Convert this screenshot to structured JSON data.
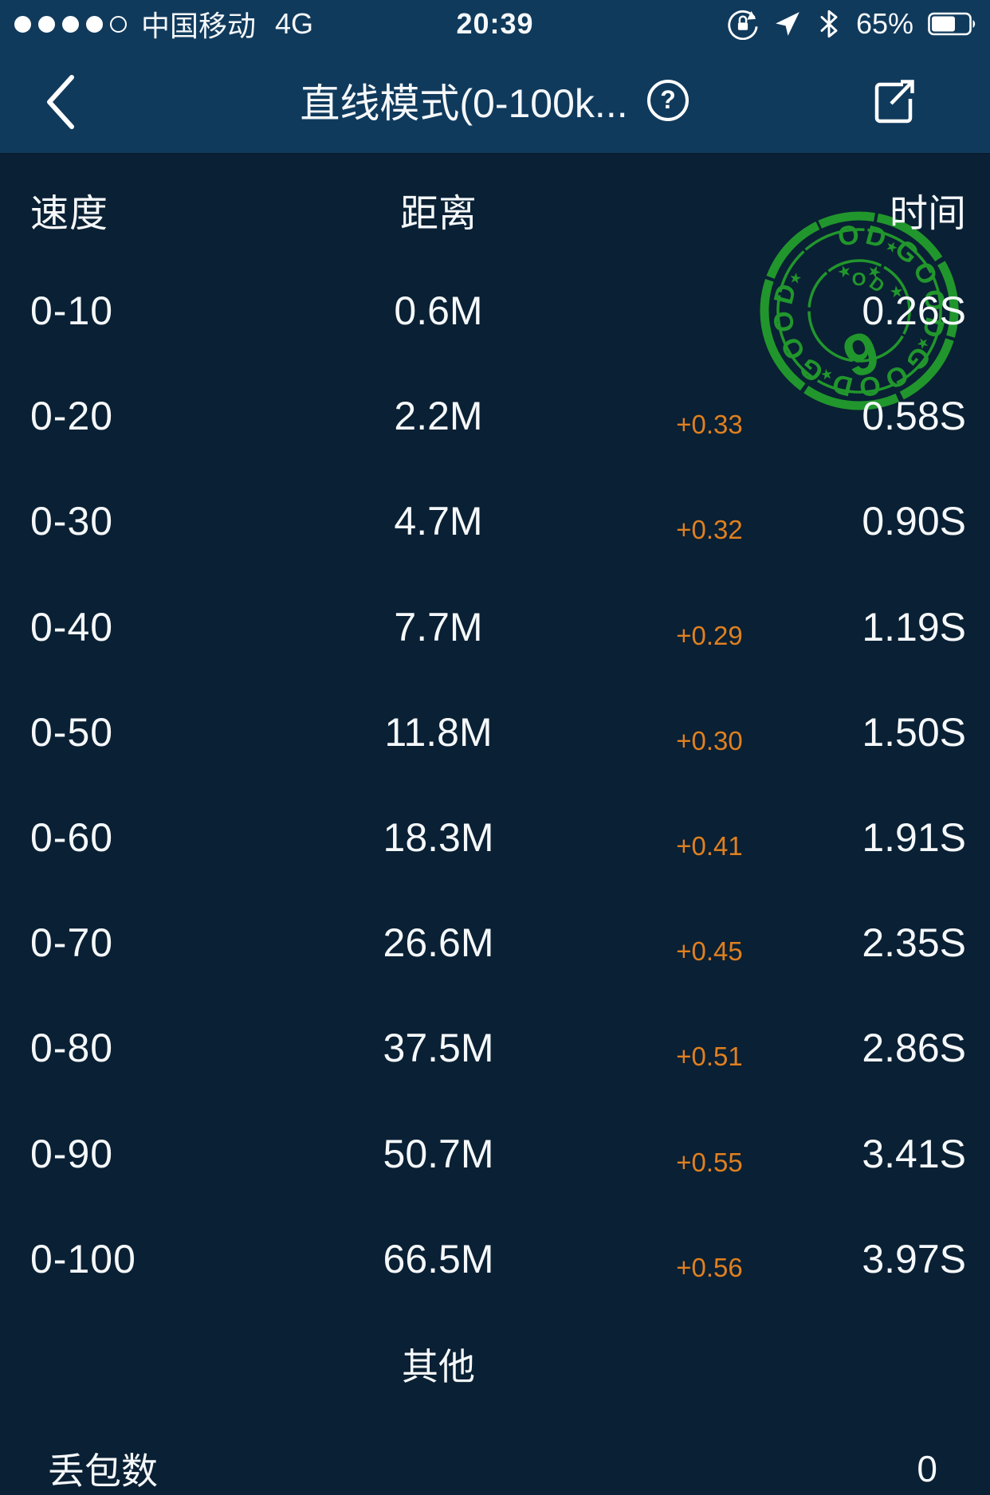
{
  "status_bar": {
    "carrier": "中国移动",
    "network": "4G",
    "time": "20:39",
    "battery_percent": "65%",
    "battery_level": 0.65,
    "signal_dots_filled": 4,
    "signal_dots_total": 5
  },
  "nav_bar": {
    "title": "直线模式(0-100k...",
    "back_label": "back",
    "help_label": "?",
    "share_label": "share"
  },
  "table": {
    "headers": {
      "speed": "速度",
      "distance": "距离",
      "time": "时间"
    },
    "rows": [
      {
        "speed": "0-10",
        "distance": "0.6M",
        "delta": "",
        "time": "0.26S"
      },
      {
        "speed": "0-20",
        "distance": "2.2M",
        "delta": "+0.33",
        "time": "0.58S"
      },
      {
        "speed": "0-30",
        "distance": "4.7M",
        "delta": "+0.32",
        "time": "0.90S"
      },
      {
        "speed": "0-40",
        "distance": "7.7M",
        "delta": "+0.29",
        "time": "1.19S"
      },
      {
        "speed": "0-50",
        "distance": "11.8M",
        "delta": "+0.30",
        "time": "1.50S"
      },
      {
        "speed": "0-60",
        "distance": "18.3M",
        "delta": "+0.41",
        "time": "1.91S"
      },
      {
        "speed": "0-70",
        "distance": "26.6M",
        "delta": "+0.45",
        "time": "2.35S"
      },
      {
        "speed": "0-80",
        "distance": "37.5M",
        "delta": "+0.51",
        "time": "2.86S"
      },
      {
        "speed": "0-90",
        "distance": "50.7M",
        "delta": "+0.55",
        "time": "3.41S"
      },
      {
        "speed": "0-100",
        "distance": "66.5M",
        "delta": "+0.56",
        "time": "3.97S"
      }
    ]
  },
  "other_section": {
    "title": "其他",
    "rows": [
      {
        "label": "丢包数",
        "value": "0"
      }
    ]
  },
  "stamp": {
    "ring_word": "GOOD",
    "ring_separator": "★",
    "stars": "★ ★ ★ ★ ★",
    "center_word": "GOOD",
    "score": "9",
    "color": "#23a02c"
  },
  "colors": {
    "chrome_bg": "#103a5c",
    "body_bg": "#0a2034",
    "text": "#f5f8fa",
    "delta_orange": "#e0801f",
    "stamp_green": "#23a02c"
  }
}
